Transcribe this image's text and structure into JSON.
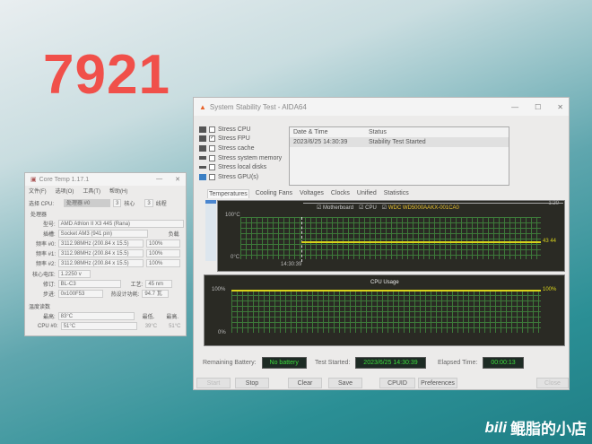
{
  "overlay_number": "7921",
  "watermark": {
    "logo": "bilibili",
    "text": "鲲脂的小店"
  },
  "aida": {
    "title": "System Stability Test - AIDA64",
    "controls": [
      "—",
      "☐",
      "✕"
    ],
    "stress": [
      {
        "label": "Stress CPU",
        "checked": false,
        "icon": "cpu-icon"
      },
      {
        "label": "Stress FPU",
        "checked": true,
        "icon": "fpu-icon"
      },
      {
        "label": "Stress cache",
        "checked": false,
        "icon": "cache-icon"
      },
      {
        "label": "Stress system memory",
        "checked": false,
        "icon": "memory-icon"
      },
      {
        "label": "Stress local disks",
        "checked": false,
        "icon": "disk-icon"
      },
      {
        "label": "Stress GPU(s)",
        "checked": false,
        "icon": "monitor-icon"
      }
    ],
    "log": {
      "headers": [
        "Date & Time",
        "Status"
      ],
      "rows": [
        [
          "2023/6/25 14:30:39",
          "Stability Test Started"
        ]
      ]
    },
    "tabs": [
      "Temperatures",
      "Cooling Fans",
      "Voltages",
      "Clocks",
      "Unified",
      "Statistics"
    ],
    "temp_graph": {
      "legend": [
        "Motherboard",
        "CPU",
        "WDC WD5000AAKX-001CA0"
      ],
      "y_max": "100°C",
      "y_min": "0°C",
      "x_label": "14:30:39",
      "value_label": "43 44",
      "scroll_label": "1:20",
      "values": [
        43,
        44
      ]
    },
    "cpu_graph": {
      "title": "CPU Usage",
      "y_max": "100%",
      "y_min": "0%",
      "value_label": "100%",
      "value": 100
    },
    "info": {
      "battery_label": "Remaining Battery:",
      "battery": "No battery",
      "started_label": "Test Started:",
      "started": "2023/6/25 14:30:39",
      "elapsed_label": "Elapsed Time:",
      "elapsed": "00:00:13"
    },
    "buttons": [
      "Start",
      "Stop",
      "Clear",
      "Save",
      "CPUID",
      "Preferences",
      "Close"
    ],
    "colors": {
      "graph_bg": "#2a2a24",
      "grid": "#3d7a3a",
      "line": "#d8d21c",
      "value_green": "#3cdc3c"
    }
  },
  "coretemp": {
    "title": "Core Temp 1.17.1",
    "menu": [
      "文件(F)",
      "选项(O)",
      "工具(T)",
      "帮助(H)"
    ],
    "select_label": "选择 CPU:",
    "cpu_select": "处理器 #0",
    "cores": "3",
    "cores_label": "核心",
    "threads": "3",
    "threads_label": "线程",
    "processor_label": "处理器",
    "model_label": "型号:",
    "model": "AMD Athlon II X3 445 (Rana)",
    "socket_label": "插槽:",
    "socket": "Socket AM3 (941 pin)",
    "load_label": "负载",
    "freqs": [
      {
        "label": "频率 #0:",
        "value": "3112.98MHz (200.84 x 15.5)",
        "load": "100%"
      },
      {
        "label": "频率 #1:",
        "value": "3112.98MHz (200.84 x 15.5)",
        "load": "100%"
      },
      {
        "label": "频率 #2:",
        "value": "3112.98MHz (200.84 x 15.5)",
        "load": "100%"
      }
    ],
    "vid_label": "核心电压:",
    "vid": "1.2250 v",
    "rev_label": "修订:",
    "rev": "BL-C3",
    "lith_label": "工艺:",
    "lith": "45 nm",
    "cpuid_label": "步进:",
    "cpuid": "0x100F53",
    "tdp_label": "热设计功耗:",
    "tdp": "94.7 瓦",
    "temps_label": "温度读数",
    "tj_label": "最高:",
    "tj": "83°C",
    "min_label": "最低.",
    "max_label": "最高.",
    "cpu0_label": "CPU #0:",
    "cpu0": "51°C",
    "cpu0_min": "39°C",
    "cpu0_max": "51°C"
  }
}
